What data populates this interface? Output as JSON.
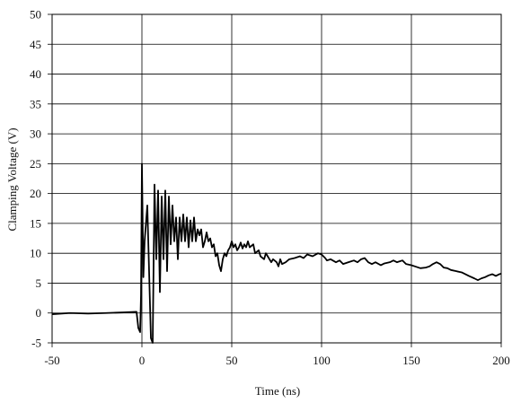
{
  "chart_data": {
    "type": "line",
    "xlabel": "Time (ns)",
    "ylabel": "Clamping Voltage (V)",
    "xlim": [
      -50,
      200
    ],
    "ylim": [
      -5,
      50
    ],
    "x_ticks": [
      -50,
      0,
      50,
      100,
      150,
      200
    ],
    "y_ticks": [
      -5,
      0,
      5,
      10,
      15,
      20,
      25,
      30,
      35,
      40,
      45,
      50
    ],
    "grid": true,
    "series": [
      {
        "color": "#000000",
        "points": [
          [
            -50,
            -0.2
          ],
          [
            -40,
            0.0
          ],
          [
            -30,
            -0.1
          ],
          [
            -20,
            0.0
          ],
          [
            -10,
            0.1
          ],
          [
            -3,
            0.2
          ],
          [
            -2,
            -2.5
          ],
          [
            -1,
            -3.2
          ],
          [
            -0.5,
            3
          ],
          [
            0,
            25
          ],
          [
            0.8,
            6
          ],
          [
            1.5,
            12
          ],
          [
            3,
            18
          ],
          [
            5,
            -4.2
          ],
          [
            6,
            -5
          ],
          [
            7,
            21.5
          ],
          [
            8,
            9
          ],
          [
            9,
            20.5
          ],
          [
            10,
            3.5
          ],
          [
            11,
            19.5
          ],
          [
            12,
            9
          ],
          [
            13,
            20.5
          ],
          [
            14,
            7
          ],
          [
            15,
            19.5
          ],
          [
            16,
            11.5
          ],
          [
            17,
            18
          ],
          [
            18,
            12
          ],
          [
            19,
            16
          ],
          [
            20,
            9
          ],
          [
            21,
            16
          ],
          [
            22,
            12
          ],
          [
            23,
            16.5
          ],
          [
            24,
            12
          ],
          [
            25,
            16
          ],
          [
            26,
            11
          ],
          [
            27,
            15.5
          ],
          [
            28,
            12
          ],
          [
            29,
            16
          ],
          [
            30,
            12
          ],
          [
            31,
            14
          ],
          [
            32,
            13
          ],
          [
            33,
            14
          ],
          [
            34,
            11
          ],
          [
            35,
            12
          ],
          [
            36,
            13.5
          ],
          [
            37,
            12
          ],
          [
            38,
            12.5
          ],
          [
            39,
            11
          ],
          [
            40,
            11.5
          ],
          [
            41,
            9.5
          ],
          [
            42,
            10
          ],
          [
            43,
            8
          ],
          [
            44,
            7
          ],
          [
            45,
            9
          ],
          [
            46,
            10
          ],
          [
            47,
            9.5
          ],
          [
            48,
            10.5
          ],
          [
            49,
            11
          ],
          [
            50,
            12
          ],
          [
            51,
            11
          ],
          [
            52,
            11.5
          ],
          [
            53,
            10.5
          ],
          [
            54,
            11
          ],
          [
            55,
            11.8
          ],
          [
            56,
            10.8
          ],
          [
            57,
            11.5
          ],
          [
            58,
            11
          ],
          [
            59,
            12
          ],
          [
            60,
            11
          ],
          [
            62,
            11.5
          ],
          [
            63,
            10
          ],
          [
            65,
            10.5
          ],
          [
            66,
            9.5
          ],
          [
            68,
            9
          ],
          [
            69,
            10
          ],
          [
            70,
            9.5
          ],
          [
            72,
            8.5
          ],
          [
            73,
            9
          ],
          [
            75,
            8.5
          ],
          [
            76,
            7.8
          ],
          [
            77,
            9
          ],
          [
            78,
            8.2
          ],
          [
            80,
            8.5
          ],
          [
            82,
            9
          ],
          [
            85,
            9.2
          ],
          [
            88,
            9.5
          ],
          [
            90,
            9.2
          ],
          [
            92,
            9.8
          ],
          [
            95,
            9.5
          ],
          [
            98,
            10
          ],
          [
            100,
            9.8
          ],
          [
            102,
            9.2
          ],
          [
            103,
            8.8
          ],
          [
            105,
            9
          ],
          [
            108,
            8.5
          ],
          [
            110,
            8.8
          ],
          [
            112,
            8.2
          ],
          [
            115,
            8.5
          ],
          [
            118,
            8.8
          ],
          [
            120,
            8.5
          ],
          [
            122,
            9
          ],
          [
            124,
            9.2
          ],
          [
            126,
            8.5
          ],
          [
            128,
            8.2
          ],
          [
            130,
            8.5
          ],
          [
            133,
            8
          ],
          [
            135,
            8.3
          ],
          [
            138,
            8.5
          ],
          [
            140,
            8.8
          ],
          [
            142,
            8.5
          ],
          [
            145,
            8.8
          ],
          [
            147,
            8.2
          ],
          [
            150,
            8
          ],
          [
            152,
            7.8
          ],
          [
            155,
            7.5
          ],
          [
            158,
            7.6
          ],
          [
            160,
            7.8
          ],
          [
            162,
            8.2
          ],
          [
            164,
            8.5
          ],
          [
            166,
            8.2
          ],
          [
            168,
            7.6
          ],
          [
            170,
            7.5
          ],
          [
            172,
            7.2
          ],
          [
            175,
            7
          ],
          [
            178,
            6.8
          ],
          [
            180,
            6.5
          ],
          [
            182,
            6.2
          ],
          [
            185,
            5.8
          ],
          [
            187,
            5.5
          ],
          [
            189,
            5.8
          ],
          [
            191,
            6
          ],
          [
            193,
            6.3
          ],
          [
            195,
            6.5
          ],
          [
            197,
            6.2
          ],
          [
            199,
            6.5
          ],
          [
            200,
            6.6
          ]
        ]
      }
    ]
  }
}
